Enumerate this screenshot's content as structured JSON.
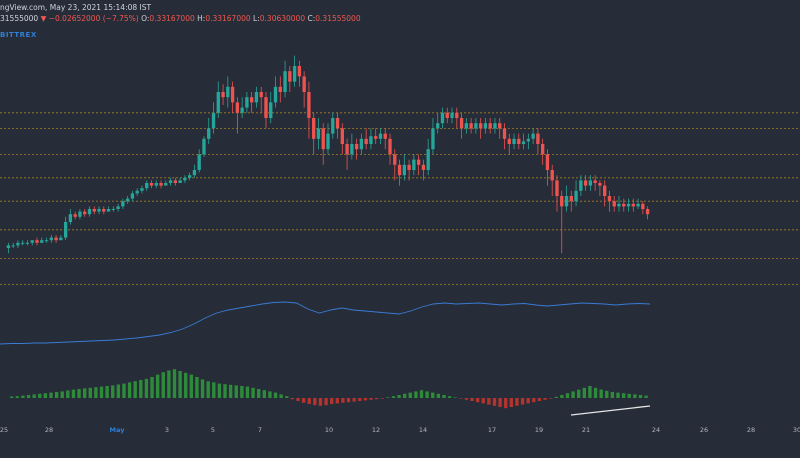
{
  "header": {
    "source": "ngView.com, May 23, 2021 15:14:08 IST",
    "close_value": "31555000",
    "change": "▼ −0.02652000 (−7.75%)",
    "open_label": "O:",
    "open_value": "0.33167000",
    "high_label": "H:",
    "high_value": "0.33167000",
    "low_label": "L:",
    "low_value": "0.30630000",
    "close_label": "C:",
    "close_value_full": "0.31555000"
  },
  "exchange": "BITTREX",
  "colors": {
    "background": "#262c38",
    "up": "#26a69a",
    "down": "#ef5350",
    "level_line": "#c8961e",
    "indicator_line": "#3a7bd5",
    "trend_line": "#e6e6e6"
  },
  "chart_data": {
    "type": "candlestick",
    "x_ticks": [
      "25",
      "28",
      "May",
      "3",
      "5",
      "7",
      "10",
      "12",
      "14",
      "17",
      "19",
      "21",
      "24",
      "26",
      "28",
      "30"
    ],
    "x_ticks_month": "May",
    "price_levels_relative": [
      0.72,
      0.66,
      0.56,
      0.47,
      0.38,
      0.27,
      0.16,
      0.06
    ],
    "candles": [
      [
        0.2,
        0.21,
        0.18,
        0.22
      ],
      [
        0.21,
        0.21,
        0.2,
        0.22
      ],
      [
        0.21,
        0.22,
        0.2,
        0.23
      ],
      [
        0.22,
        0.22,
        0.21,
        0.23
      ],
      [
        0.22,
        0.22,
        0.21,
        0.23
      ],
      [
        0.22,
        0.23,
        0.21,
        0.23
      ],
      [
        0.23,
        0.22,
        0.21,
        0.24
      ],
      [
        0.22,
        0.23,
        0.22,
        0.24
      ],
      [
        0.23,
        0.23,
        0.22,
        0.24
      ],
      [
        0.23,
        0.24,
        0.22,
        0.25
      ],
      [
        0.24,
        0.23,
        0.22,
        0.25
      ],
      [
        0.23,
        0.24,
        0.23,
        0.25
      ],
      [
        0.24,
        0.3,
        0.23,
        0.32
      ],
      [
        0.3,
        0.33,
        0.29,
        0.35
      ],
      [
        0.33,
        0.32,
        0.31,
        0.34
      ],
      [
        0.32,
        0.34,
        0.31,
        0.35
      ],
      [
        0.34,
        0.33,
        0.32,
        0.35
      ],
      [
        0.33,
        0.35,
        0.32,
        0.36
      ],
      [
        0.35,
        0.34,
        0.33,
        0.36
      ],
      [
        0.34,
        0.35,
        0.33,
        0.36
      ],
      [
        0.35,
        0.34,
        0.33,
        0.36
      ],
      [
        0.34,
        0.35,
        0.34,
        0.36
      ],
      [
        0.35,
        0.35,
        0.34,
        0.36
      ],
      [
        0.35,
        0.36,
        0.34,
        0.37
      ],
      [
        0.36,
        0.38,
        0.35,
        0.39
      ],
      [
        0.38,
        0.39,
        0.37,
        0.4
      ],
      [
        0.39,
        0.41,
        0.38,
        0.42
      ],
      [
        0.41,
        0.42,
        0.4,
        0.43
      ],
      [
        0.42,
        0.43,
        0.41,
        0.44
      ],
      [
        0.43,
        0.45,
        0.42,
        0.46
      ],
      [
        0.45,
        0.44,
        0.43,
        0.46
      ],
      [
        0.44,
        0.45,
        0.43,
        0.46
      ],
      [
        0.45,
        0.44,
        0.43,
        0.46
      ],
      [
        0.44,
        0.45,
        0.44,
        0.46
      ],
      [
        0.45,
        0.46,
        0.44,
        0.47
      ],
      [
        0.46,
        0.45,
        0.44,
        0.47
      ],
      [
        0.45,
        0.46,
        0.45,
        0.47
      ],
      [
        0.46,
        0.47,
        0.45,
        0.48
      ],
      [
        0.47,
        0.48,
        0.46,
        0.49
      ],
      [
        0.48,
        0.5,
        0.47,
        0.52
      ],
      [
        0.5,
        0.56,
        0.49,
        0.58
      ],
      [
        0.56,
        0.62,
        0.55,
        0.63
      ],
      [
        0.62,
        0.66,
        0.6,
        0.7
      ],
      [
        0.66,
        0.72,
        0.64,
        0.76
      ],
      [
        0.72,
        0.8,
        0.7,
        0.84
      ],
      [
        0.8,
        0.78,
        0.75,
        0.83
      ],
      [
        0.78,
        0.82,
        0.74,
        0.86
      ],
      [
        0.82,
        0.76,
        0.72,
        0.84
      ],
      [
        0.76,
        0.72,
        0.64,
        0.78
      ],
      [
        0.72,
        0.74,
        0.7,
        0.78
      ],
      [
        0.74,
        0.78,
        0.72,
        0.8
      ],
      [
        0.78,
        0.76,
        0.72,
        0.8
      ],
      [
        0.76,
        0.8,
        0.74,
        0.82
      ],
      [
        0.8,
        0.78,
        0.72,
        0.82
      ],
      [
        0.78,
        0.7,
        0.66,
        0.8
      ],
      [
        0.7,
        0.76,
        0.68,
        0.8
      ],
      [
        0.76,
        0.82,
        0.74,
        0.86
      ],
      [
        0.82,
        0.8,
        0.76,
        0.86
      ],
      [
        0.8,
        0.88,
        0.78,
        0.92
      ],
      [
        0.88,
        0.84,
        0.8,
        0.9
      ],
      [
        0.84,
        0.9,
        0.82,
        0.94
      ],
      [
        0.9,
        0.86,
        0.82,
        0.92
      ],
      [
        0.86,
        0.8,
        0.74,
        0.88
      ],
      [
        0.8,
        0.7,
        0.62,
        0.84
      ],
      [
        0.7,
        0.62,
        0.56,
        0.72
      ],
      [
        0.62,
        0.66,
        0.58,
        0.7
      ],
      [
        0.66,
        0.58,
        0.52,
        0.68
      ],
      [
        0.58,
        0.64,
        0.56,
        0.68
      ],
      [
        0.64,
        0.7,
        0.62,
        0.72
      ],
      [
        0.7,
        0.66,
        0.62,
        0.72
      ],
      [
        0.66,
        0.6,
        0.56,
        0.68
      ],
      [
        0.6,
        0.56,
        0.5,
        0.62
      ],
      [
        0.56,
        0.6,
        0.54,
        0.64
      ],
      [
        0.6,
        0.58,
        0.54,
        0.62
      ],
      [
        0.58,
        0.62,
        0.56,
        0.64
      ],
      [
        0.62,
        0.6,
        0.58,
        0.66
      ],
      [
        0.6,
        0.63,
        0.58,
        0.66
      ],
      [
        0.63,
        0.62,
        0.6,
        0.66
      ],
      [
        0.62,
        0.64,
        0.6,
        0.66
      ],
      [
        0.64,
        0.62,
        0.58,
        0.66
      ],
      [
        0.62,
        0.56,
        0.52,
        0.64
      ],
      [
        0.56,
        0.52,
        0.46,
        0.58
      ],
      [
        0.52,
        0.48,
        0.44,
        0.54
      ],
      [
        0.48,
        0.52,
        0.46,
        0.56
      ],
      [
        0.52,
        0.5,
        0.46,
        0.54
      ],
      [
        0.5,
        0.54,
        0.48,
        0.56
      ],
      [
        0.54,
        0.52,
        0.48,
        0.56
      ],
      [
        0.52,
        0.5,
        0.46,
        0.54
      ],
      [
        0.5,
        0.58,
        0.48,
        0.62
      ],
      [
        0.58,
        0.66,
        0.56,
        0.7
      ],
      [
        0.66,
        0.68,
        0.64,
        0.72
      ],
      [
        0.68,
        0.72,
        0.66,
        0.74
      ],
      [
        0.72,
        0.7,
        0.68,
        0.74
      ],
      [
        0.7,
        0.72,
        0.68,
        0.74
      ],
      [
        0.72,
        0.7,
        0.66,
        0.74
      ],
      [
        0.7,
        0.66,
        0.62,
        0.72
      ],
      [
        0.66,
        0.68,
        0.64,
        0.7
      ],
      [
        0.68,
        0.66,
        0.64,
        0.7
      ],
      [
        0.66,
        0.68,
        0.64,
        0.7
      ],
      [
        0.68,
        0.66,
        0.62,
        0.7
      ],
      [
        0.66,
        0.68,
        0.64,
        0.7
      ],
      [
        0.68,
        0.66,
        0.64,
        0.7
      ],
      [
        0.66,
        0.68,
        0.64,
        0.7
      ],
      [
        0.68,
        0.66,
        0.62,
        0.7
      ],
      [
        0.66,
        0.62,
        0.58,
        0.68
      ],
      [
        0.62,
        0.6,
        0.56,
        0.64
      ],
      [
        0.6,
        0.62,
        0.58,
        0.64
      ],
      [
        0.62,
        0.6,
        0.58,
        0.64
      ],
      [
        0.6,
        0.61,
        0.58,
        0.64
      ],
      [
        0.61,
        0.62,
        0.58,
        0.64
      ],
      [
        0.62,
        0.64,
        0.6,
        0.66
      ],
      [
        0.64,
        0.6,
        0.56,
        0.66
      ],
      [
        0.6,
        0.56,
        0.52,
        0.62
      ],
      [
        0.56,
        0.5,
        0.44,
        0.58
      ],
      [
        0.5,
        0.46,
        0.4,
        0.52
      ],
      [
        0.46,
        0.4,
        0.34,
        0.48
      ],
      [
        0.4,
        0.36,
        0.18,
        0.42
      ],
      [
        0.36,
        0.4,
        0.34,
        0.44
      ],
      [
        0.4,
        0.38,
        0.34,
        0.42
      ],
      [
        0.38,
        0.42,
        0.36,
        0.46
      ],
      [
        0.42,
        0.46,
        0.4,
        0.48
      ],
      [
        0.46,
        0.44,
        0.42,
        0.48
      ],
      [
        0.44,
        0.46,
        0.42,
        0.48
      ],
      [
        0.46,
        0.45,
        0.42,
        0.48
      ],
      [
        0.45,
        0.44,
        0.4,
        0.46
      ],
      [
        0.44,
        0.4,
        0.36,
        0.46
      ],
      [
        0.4,
        0.38,
        0.34,
        0.42
      ],
      [
        0.38,
        0.36,
        0.34,
        0.4
      ],
      [
        0.36,
        0.37,
        0.34,
        0.4
      ],
      [
        0.37,
        0.36,
        0.34,
        0.39
      ],
      [
        0.36,
        0.37,
        0.34,
        0.39
      ],
      [
        0.37,
        0.36,
        0.34,
        0.39
      ],
      [
        0.36,
        0.37,
        0.35,
        0.39
      ],
      [
        0.37,
        0.35,
        0.33,
        0.38
      ],
      [
        0.35,
        0.33,
        0.31,
        0.36
      ]
    ],
    "indicator": [
      0.12,
      0.13,
      0.13,
      0.14,
      0.14,
      0.15,
      0.16,
      0.17,
      0.18,
      0.19,
      0.2,
      0.22,
      0.24,
      0.27,
      0.3,
      0.35,
      0.42,
      0.52,
      0.64,
      0.74,
      0.8,
      0.84,
      0.88,
      0.92,
      0.95,
      0.96,
      0.94,
      0.82,
      0.74,
      0.8,
      0.84,
      0.8,
      0.78,
      0.76,
      0.74,
      0.72,
      0.78,
      0.86,
      0.92,
      0.94,
      0.92,
      0.93,
      0.94,
      0.92,
      0.9,
      0.92,
      0.93,
      0.9,
      0.88,
      0.9,
      0.92,
      0.94,
      0.93,
      0.92,
      0.9,
      0.92,
      0.93,
      0.92
    ],
    "histogram": [
      0.05,
      0.06,
      0.08,
      0.1,
      0.12,
      0.14,
      0.16,
      0.18,
      0.2,
      0.22,
      0.25,
      0.28,
      0.3,
      0.32,
      0.34,
      0.36,
      0.38,
      0.4,
      0.42,
      0.45,
      0.48,
      0.52,
      0.56,
      0.6,
      0.64,
      0.7,
      0.78,
      0.86,
      0.92,
      0.96,
      0.9,
      0.84,
      0.78,
      0.7,
      0.62,
      0.56,
      0.52,
      0.48,
      0.46,
      0.44,
      0.42,
      0.4,
      0.38,
      0.34,
      0.3,
      0.26,
      0.22,
      0.18,
      0.12,
      0.06,
      -0.04,
      -0.1,
      -0.16,
      -0.2,
      -0.24,
      -0.26,
      -0.24,
      -0.2,
      -0.18,
      -0.16,
      -0.14,
      -0.12,
      -0.1,
      -0.08,
      -0.06,
      -0.04,
      -0.02,
      0.02,
      0.06,
      0.1,
      0.14,
      0.18,
      0.22,
      0.26,
      0.22,
      0.18,
      0.14,
      0.1,
      0.06,
      0.02,
      -0.02,
      -0.06,
      -0.1,
      -0.14,
      -0.18,
      -0.22,
      -0.26,
      -0.3,
      -0.34,
      -0.3,
      -0.26,
      -0.22,
      -0.18,
      -0.14,
      -0.1,
      -0.06,
      -0.02,
      0.04,
      0.1,
      0.16,
      0.22,
      0.28,
      0.34,
      0.4,
      0.34,
      0.28,
      0.24,
      0.2,
      0.18,
      0.16,
      0.14,
      0.12,
      0.1,
      0.08
    ]
  }
}
